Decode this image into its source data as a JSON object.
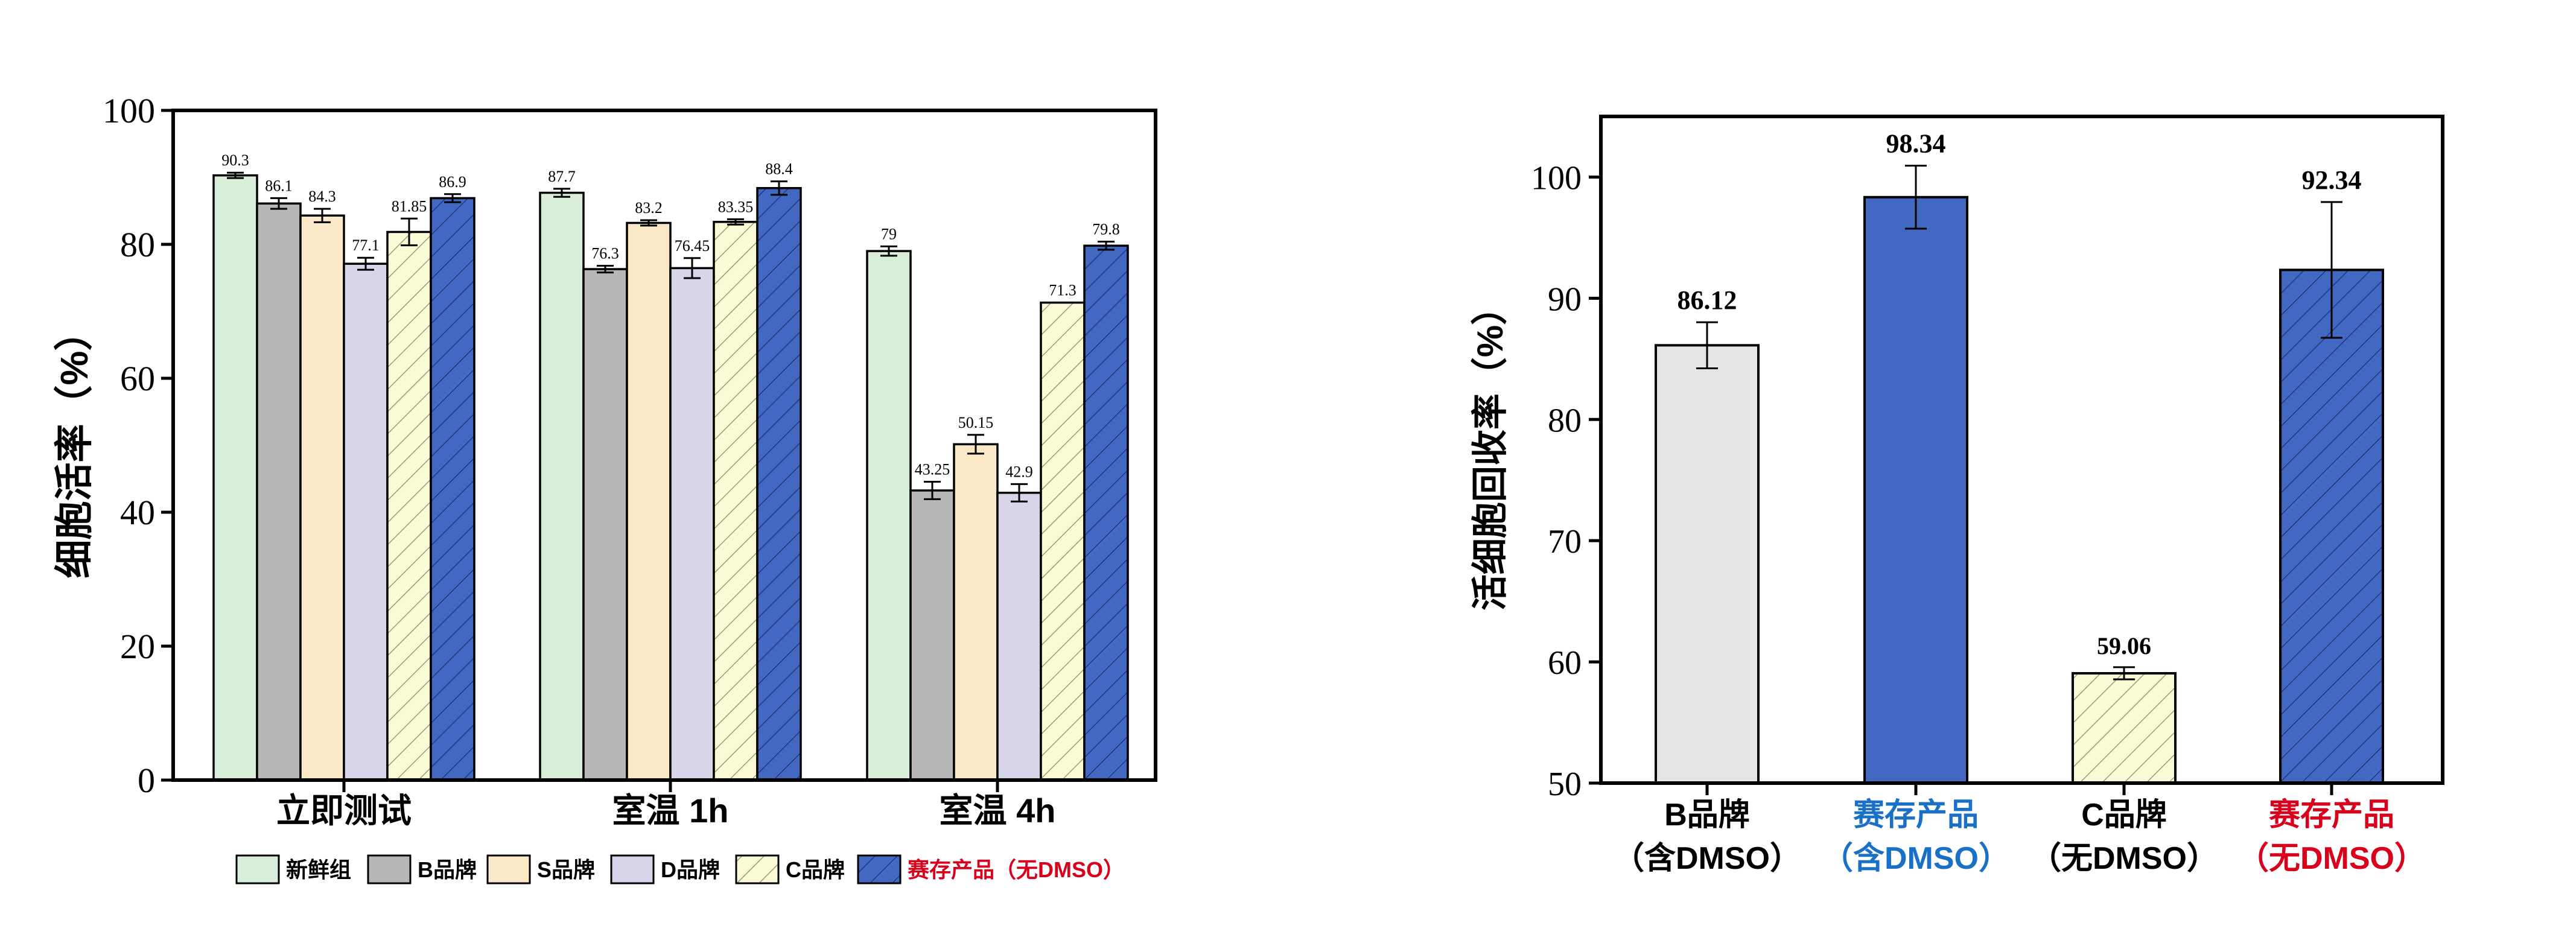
{
  "colors": {
    "fresh": "#d8eed8",
    "b_brand": "#b7b7b7",
    "s_brand": "#fbe8c6",
    "d_brand": "#d7d5ea",
    "c_brand": "#fafad6",
    "saicun": "#4368c2",
    "blue_text": "#1a6fc7",
    "red_text": "#d9001b",
    "b_brand_light": "#e4e4e4"
  },
  "chart_data": [
    {
      "type": "bar",
      "ylabel": "细胞活率（%）",
      "ylim": [
        0,
        100
      ],
      "yticks": [
        0,
        20,
        40,
        60,
        80,
        100
      ],
      "categories": [
        "立即测试",
        "室温 1h",
        "室温 4h"
      ],
      "series": [
        {
          "name": "新鲜组",
          "values": [
            90.3,
            87.7,
            79
          ],
          "errors": [
            0.4,
            0.6,
            0.7
          ],
          "labels": [
            "90.3",
            "87.7",
            "79"
          ]
        },
        {
          "name": "B品牌",
          "values": [
            86.1,
            76.3,
            43.25
          ],
          "errors": [
            0.8,
            0.5,
            1.3
          ],
          "labels": [
            "86.1",
            "76.3",
            "43.25"
          ]
        },
        {
          "name": "S品牌",
          "values": [
            84.3,
            83.2,
            50.15
          ],
          "errors": [
            1.0,
            0.4,
            1.4
          ],
          "labels": [
            "84.3",
            "83.2",
            "50.15"
          ]
        },
        {
          "name": "D品牌",
          "values": [
            77.1,
            76.45,
            42.9
          ],
          "errors": [
            0.9,
            1.5,
            1.3
          ],
          "labels": [
            "77.1",
            "76.45",
            "42.9"
          ]
        },
        {
          "name": "C品牌",
          "values": [
            81.85,
            83.35,
            71.3
          ],
          "errors": [
            2.0,
            0.4,
            0
          ],
          "labels": [
            "81.85",
            "83.35",
            "71.3"
          ]
        },
        {
          "name": "赛存产品（无DMSO）",
          "values": [
            86.9,
            88.4,
            79.8
          ],
          "errors": [
            0.6,
            1.0,
            0.6
          ],
          "labels": [
            "86.9",
            "88.4",
            "79.8"
          ]
        }
      ],
      "legend_position": "bottom"
    },
    {
      "type": "bar",
      "ylabel": "活细胞回收率（%）",
      "ylim": [
        50,
        105
      ],
      "yticks": [
        50,
        60,
        70,
        80,
        90,
        100
      ],
      "categories": [
        {
          "line1": "B品牌",
          "line2": "（含DMSO）",
          "color": "#000000"
        },
        {
          "line1": "赛存产品",
          "line2": "（含DMSO）",
          "color": "#1a6fc7"
        },
        {
          "line1": "C品牌",
          "line2": "（无DMSO）",
          "color": "#000000"
        },
        {
          "line1": "赛存产品",
          "line2": "（无DMSO）",
          "color": "#d9001b"
        }
      ],
      "values": [
        86.12,
        98.34,
        59.06,
        92.34
      ],
      "errors": [
        1.9,
        2.6,
        0.5,
        5.6
      ],
      "labels": [
        "86.12",
        "98.34",
        "59.06",
        "92.34"
      ]
    }
  ]
}
